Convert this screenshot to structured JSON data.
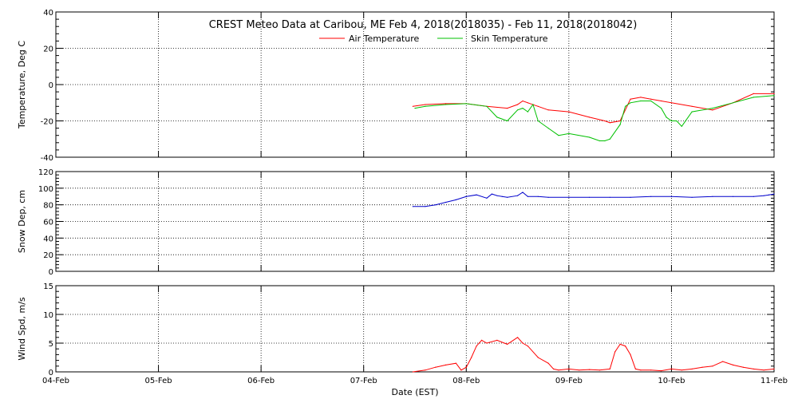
{
  "chart_data": {
    "type": "line",
    "title": "CREST Meteo Data at Caribou, ME   Feb  4, 2018(2018035) - Feb 11, 2018(2018042)",
    "xlabel": "Date (EST)",
    "x_ticks": [
      "04-Feb",
      "05-Feb",
      "06-Feb",
      "07-Feb",
      "08-Feb",
      "09-Feb",
      "10-Feb",
      "11-Feb"
    ],
    "x_range": [
      "2018-02-04",
      "2018-02-11"
    ],
    "grid": true,
    "legend_position": "top-center",
    "panels": [
      {
        "ylabel": "Temperature, Deg C",
        "ylim": [
          -40,
          40
        ],
        "y_ticks": [
          -40,
          -20,
          0,
          20,
          40
        ],
        "series": [
          {
            "name": "Air Temperature",
            "color": "#ff0000",
            "x": [
              3.48,
              3.6,
              3.8,
              4.0,
              4.2,
              4.4,
              4.5,
              4.55,
              4.6,
              4.7,
              4.8,
              5.0,
              5.2,
              5.35,
              5.4,
              5.5,
              5.6,
              5.7,
              5.8,
              5.9,
              6.0,
              6.2,
              6.4,
              6.6,
              6.8,
              7.0
            ],
            "y": [
              -12,
              -11,
              -10.5,
              -10.5,
              -12,
              -13,
              -11,
              -9,
              -10,
              -12,
              -14,
              -15,
              -18,
              -20,
              -21,
              -20,
              -8,
              -7,
              -8,
              -9,
              -10,
              -12,
              -14,
              -10,
              -5,
              -5
            ]
          },
          {
            "name": "Skin Temperature",
            "color": "#00c000",
            "x": [
              3.5,
              3.6,
              3.8,
              4.0,
              4.2,
              4.3,
              4.4,
              4.5,
              4.55,
              4.6,
              4.65,
              4.7,
              4.8,
              4.9,
              5.0,
              5.2,
              5.3,
              5.35,
              5.4,
              5.5,
              5.55,
              5.6,
              5.7,
              5.8,
              5.9,
              5.95,
              6.0,
              6.05,
              6.1,
              6.2,
              6.4,
              6.6,
              6.8,
              7.0
            ],
            "y": [
              -13,
              -12,
              -11,
              -10.5,
              -12,
              -18,
              -20,
              -14,
              -13,
              -15,
              -11,
              -20,
              -24,
              -28,
              -27,
              -29,
              -31,
              -31,
              -30,
              -22,
              -12,
              -10,
              -9,
              -9,
              -13,
              -18,
              -20,
              -20,
              -23,
              -15,
              -13,
              -10,
              -7,
              -6
            ]
          }
        ]
      },
      {
        "ylabel": "Snow Dep, cm",
        "ylim": [
          0,
          120
        ],
        "y_ticks": [
          0,
          20,
          40,
          60,
          80,
          100,
          120
        ],
        "series": [
          {
            "name": "Snow Depth",
            "color": "#0000cc",
            "x": [
              3.48,
              3.6,
              3.7,
              3.8,
              3.9,
              4.0,
              4.1,
              4.2,
              4.25,
              4.3,
              4.35,
              4.4,
              4.5,
              4.55,
              4.6,
              4.7,
              4.8,
              5.0,
              5.2,
              5.4,
              5.6,
              5.8,
              6.0,
              6.2,
              6.4,
              6.6,
              6.8,
              6.9,
              6.95,
              7.0
            ],
            "y": [
              78,
              78,
              80,
              83,
              86,
              90,
              92,
              88,
              93,
              91,
              90,
              89,
              91,
              95,
              90,
              90,
              89,
              89,
              89,
              89,
              89,
              90,
              90,
              89,
              90,
              90,
              90,
              91,
              92,
              93
            ]
          }
        ]
      },
      {
        "ylabel": "Wind Spd, m/s",
        "ylim": [
          0,
          15
        ],
        "y_ticks": [
          0,
          5,
          10,
          15
        ],
        "series": [
          {
            "name": "Wind Speed",
            "color": "#ff0000",
            "x": [
              3.48,
              3.6,
              3.7,
              3.8,
              3.9,
              3.95,
              4.0,
              4.05,
              4.1,
              4.15,
              4.2,
              4.3,
              4.4,
              4.5,
              4.55,
              4.6,
              4.7,
              4.8,
              4.85,
              4.9,
              5.0,
              5.1,
              5.2,
              5.3,
              5.4,
              5.45,
              5.5,
              5.55,
              5.6,
              5.65,
              5.7,
              5.8,
              5.9,
              6.0,
              6.1,
              6.2,
              6.3,
              6.4,
              6.5,
              6.6,
              6.7,
              6.8,
              6.9,
              7.0
            ],
            "y": [
              0,
              0.3,
              0.8,
              1.2,
              1.5,
              0.3,
              0.8,
              2.5,
              4.5,
              5.5,
              5.0,
              5.5,
              4.8,
              6.0,
              5.0,
              4.5,
              2.5,
              1.5,
              0.5,
              0.3,
              0.5,
              0.3,
              0.4,
              0.3,
              0.5,
              3.5,
              4.8,
              4.5,
              3.0,
              0.5,
              0.3,
              0.3,
              0.2,
              0.5,
              0.3,
              0.5,
              0.8,
              1.0,
              1.8,
              1.2,
              0.8,
              0.5,
              0.3,
              0.5
            ]
          }
        ]
      }
    ]
  }
}
